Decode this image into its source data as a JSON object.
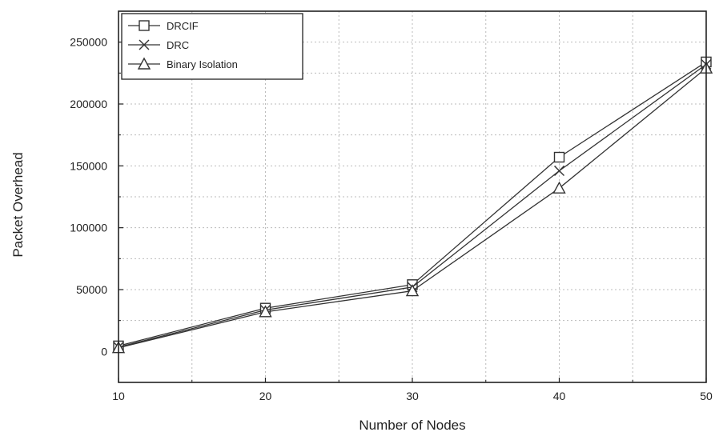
{
  "chart_data": {
    "type": "line",
    "xlabel": "Number of Nodes",
    "ylabel": "Packet Overhead",
    "x": [
      10,
      20,
      30,
      40,
      50
    ],
    "xlim": [
      10,
      50
    ],
    "ylim": [
      -25000,
      275000
    ],
    "xticks": [
      10,
      20,
      30,
      40,
      50
    ],
    "yticks": [
      0,
      50000,
      100000,
      150000,
      200000,
      250000
    ],
    "grid": true,
    "legend_position": "top-left",
    "series": [
      {
        "name": "DRCIF",
        "marker": "square",
        "values": [
          4500,
          35000,
          54000,
          157000,
          234000
        ]
      },
      {
        "name": "DRC",
        "marker": "x",
        "values": [
          3500,
          33500,
          52000,
          146000,
          232000
        ]
      },
      {
        "name": "Binary Isolation",
        "marker": "triangle",
        "values": [
          3000,
          32000,
          49000,
          132000,
          229000
        ]
      }
    ],
    "colors": {
      "line": "#333333",
      "grid": "#bbbbbb",
      "axis": "#222222"
    }
  }
}
